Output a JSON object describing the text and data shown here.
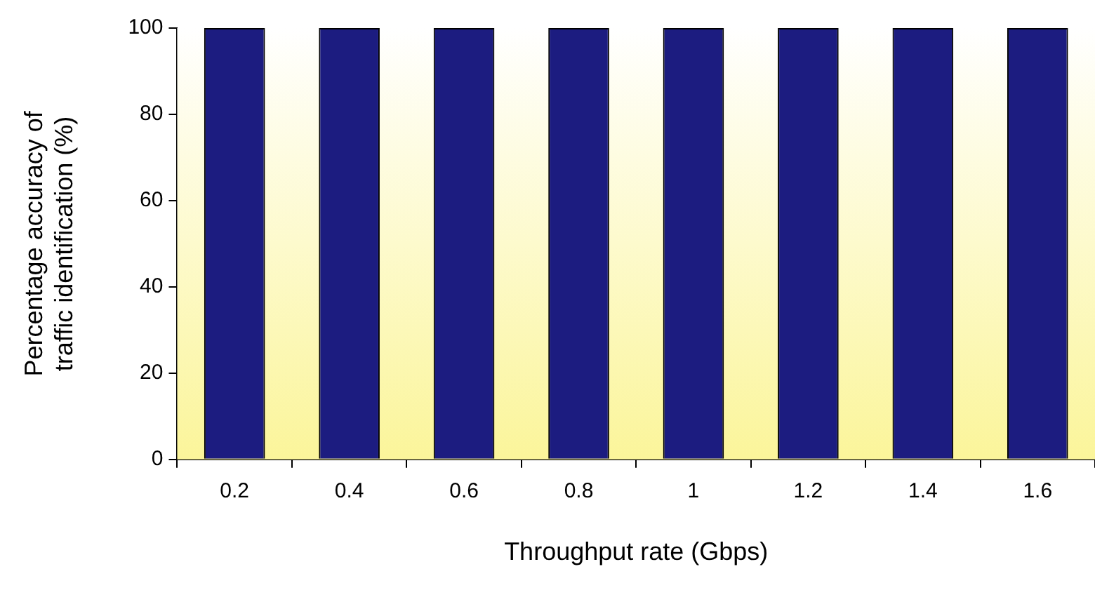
{
  "chart_data": {
    "type": "bar",
    "xlabel": "Throughput rate (Gbps)",
    "ylabel": "Percentage accuracy of\ntraffic identification (%)",
    "categories": [
      "0.2",
      "0.4",
      "0.6",
      "0.8",
      "1",
      "1.2",
      "1.4",
      "1.6"
    ],
    "values": [
      100,
      100,
      100,
      100,
      100,
      100,
      100,
      100
    ],
    "color": "#1c1c80",
    "ylim": [
      0,
      100
    ],
    "yticks": [
      0,
      20,
      40,
      60,
      80,
      100
    ],
    "grid": false,
    "legend": false
  }
}
